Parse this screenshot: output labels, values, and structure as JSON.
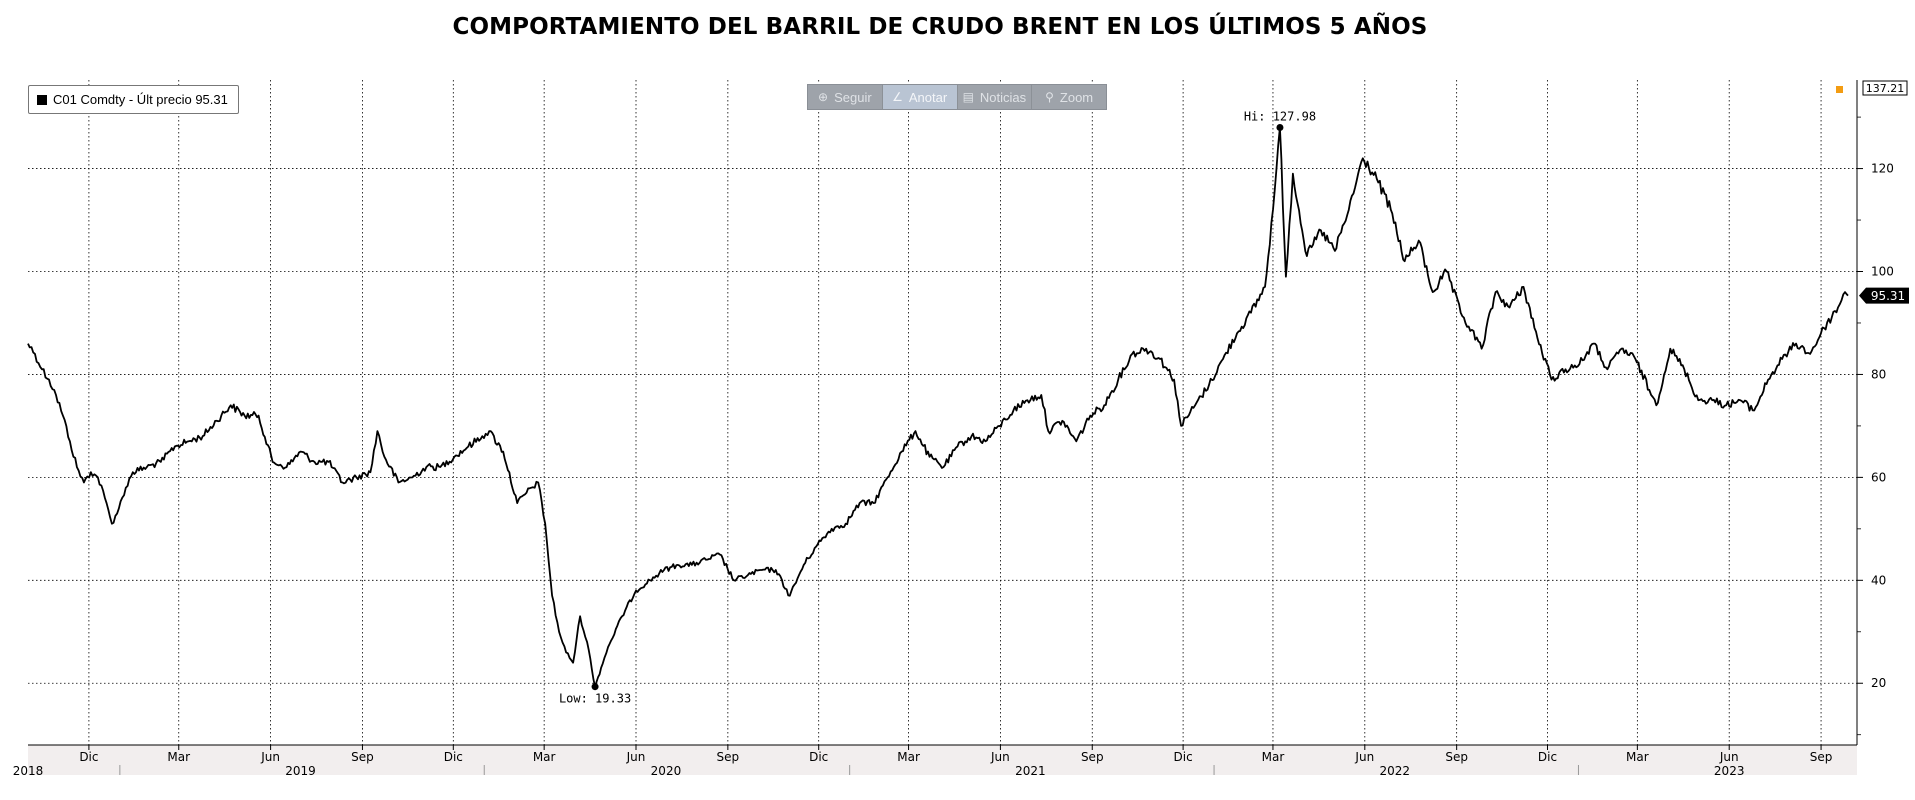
{
  "title": "COMPORTAMIENTO DEL BARRIL DE CRUDO BRENT EN LOS ÚLTIMOS 5 AÑOS",
  "legend": {
    "label": "C01 Comdty - Últ precio 95.31"
  },
  "toolbar": [
    {
      "label": "Seguir",
      "icon": "crosshair-icon",
      "glyph": "⊕",
      "active": false
    },
    {
      "label": "Anotar",
      "icon": "pencil-icon",
      "glyph": "∠",
      "active": true
    },
    {
      "label": "Noticias",
      "icon": "news-icon",
      "glyph": "▤",
      "active": false
    },
    {
      "label": "Zoom",
      "icon": "magnifier-icon",
      "glyph": "⚲",
      "active": false
    }
  ],
  "colors": {
    "line": "#000000",
    "marker": "#f39c12",
    "toolbar": "#9ea3aa",
    "axis_band": "#f2eeee"
  },
  "chart_data": {
    "type": "line",
    "ylim": [
      8,
      137.21
    ],
    "yticks": [
      20,
      40,
      60,
      80,
      100,
      120
    ],
    "axis_top_label": "137.21",
    "last_value": 95.31,
    "last_label": "95.31",
    "grid": true,
    "legend_position": "top-left",
    "x_month_ticks": [
      {
        "date": "2018-12",
        "label": "Dic"
      },
      {
        "date": "2019-03",
        "label": "Mar"
      },
      {
        "date": "2019-06",
        "label": "Jun"
      },
      {
        "date": "2019-09",
        "label": "Sep"
      },
      {
        "date": "2019-12",
        "label": "Dic"
      },
      {
        "date": "2020-03",
        "label": "Mar"
      },
      {
        "date": "2020-06",
        "label": "Jun"
      },
      {
        "date": "2020-09",
        "label": "Sep"
      },
      {
        "date": "2020-12",
        "label": "Dic"
      },
      {
        "date": "2021-03",
        "label": "Mar"
      },
      {
        "date": "2021-06",
        "label": "Jun"
      },
      {
        "date": "2021-09",
        "label": "Sep"
      },
      {
        "date": "2021-12",
        "label": "Dic"
      },
      {
        "date": "2022-03",
        "label": "Mar"
      },
      {
        "date": "2022-06",
        "label": "Jun"
      },
      {
        "date": "2022-09",
        "label": "Sep"
      },
      {
        "date": "2022-12",
        "label": "Dic"
      },
      {
        "date": "2023-03",
        "label": "Mar"
      },
      {
        "date": "2023-06",
        "label": "Jun"
      },
      {
        "date": "2023-09",
        "label": "Sep"
      }
    ],
    "x_year_labels": [
      {
        "date": "2018-10",
        "label": "2018"
      },
      {
        "date": "2019-07",
        "label": "2019"
      },
      {
        "date": "2020-07",
        "label": "2020"
      },
      {
        "date": "2021-07",
        "label": "2021"
      },
      {
        "date": "2022-07",
        "label": "2022"
      },
      {
        "date": "2023-06",
        "label": "2023"
      }
    ],
    "annotations": [
      {
        "date": "2020-04-21",
        "value": 19.33,
        "label": "Low: 19.33"
      },
      {
        "date": "2022-03-08",
        "value": 127.98,
        "label": "Hi: 127.98"
      }
    ],
    "series": [
      {
        "points": [
          [
            "2018-10-01",
            86
          ],
          [
            "2018-10-08",
            84
          ],
          [
            "2018-10-15",
            81
          ],
          [
            "2018-10-22",
            79
          ],
          [
            "2018-10-29",
            76
          ],
          [
            "2018-11-05",
            72
          ],
          [
            "2018-11-12",
            67
          ],
          [
            "2018-11-19",
            62
          ],
          [
            "2018-11-26",
            59
          ],
          [
            "2018-12-03",
            61
          ],
          [
            "2018-12-10",
            60
          ],
          [
            "2018-12-17",
            56
          ],
          [
            "2018-12-24",
            51
          ],
          [
            "2018-12-31",
            54
          ],
          [
            "2019-01-07",
            58
          ],
          [
            "2019-01-14",
            61
          ],
          [
            "2019-01-28",
            62
          ],
          [
            "2019-02-11",
            63
          ],
          [
            "2019-02-25",
            66
          ],
          [
            "2019-03-11",
            67
          ],
          [
            "2019-03-25",
            68
          ],
          [
            "2019-04-08",
            71
          ],
          [
            "2019-04-22",
            74
          ],
          [
            "2019-05-06",
            72
          ],
          [
            "2019-05-20",
            72
          ],
          [
            "2019-06-03",
            63
          ],
          [
            "2019-06-17",
            62
          ],
          [
            "2019-07-01",
            65
          ],
          [
            "2019-07-15",
            63
          ],
          [
            "2019-07-29",
            63
          ],
          [
            "2019-08-12",
            59
          ],
          [
            "2019-08-26",
            60
          ],
          [
            "2019-09-09",
            61
          ],
          [
            "2019-09-16",
            69
          ],
          [
            "2019-09-23",
            64
          ],
          [
            "2019-10-07",
            59
          ],
          [
            "2019-10-21",
            60
          ],
          [
            "2019-11-04",
            62
          ],
          [
            "2019-11-18",
            62
          ],
          [
            "2019-12-02",
            64
          ],
          [
            "2019-12-16",
            66
          ],
          [
            "2019-12-30",
            68
          ],
          [
            "2020-01-06",
            69
          ],
          [
            "2020-01-20",
            65
          ],
          [
            "2020-02-03",
            55
          ],
          [
            "2020-02-17",
            58
          ],
          [
            "2020-02-24",
            59
          ],
          [
            "2020-03-02",
            51
          ],
          [
            "2020-03-09",
            37
          ],
          [
            "2020-03-16",
            30
          ],
          [
            "2020-03-23",
            26
          ],
          [
            "2020-03-30",
            24
          ],
          [
            "2020-04-06",
            33
          ],
          [
            "2020-04-13",
            28
          ],
          [
            "2020-04-21",
            19.33
          ],
          [
            "2020-04-27",
            23
          ],
          [
            "2020-05-04",
            27
          ],
          [
            "2020-05-18",
            33
          ],
          [
            "2020-06-01",
            38
          ],
          [
            "2020-06-15",
            40
          ],
          [
            "2020-06-29",
            42
          ],
          [
            "2020-07-13",
            43
          ],
          [
            "2020-07-27",
            43
          ],
          [
            "2020-08-10",
            44
          ],
          [
            "2020-08-24",
            45
          ],
          [
            "2020-09-07",
            40
          ],
          [
            "2020-09-21",
            41
          ],
          [
            "2020-10-05",
            42
          ],
          [
            "2020-10-19",
            42
          ],
          [
            "2020-11-02",
            37
          ],
          [
            "2020-11-16",
            43
          ],
          [
            "2020-11-30",
            47
          ],
          [
            "2020-12-14",
            50
          ],
          [
            "2020-12-28",
            51
          ],
          [
            "2021-01-11",
            55
          ],
          [
            "2021-01-25",
            55
          ],
          [
            "2021-02-08",
            60
          ],
          [
            "2021-02-22",
            65
          ],
          [
            "2021-03-08",
            69
          ],
          [
            "2021-03-22",
            64
          ],
          [
            "2021-04-05",
            62
          ],
          [
            "2021-04-19",
            66
          ],
          [
            "2021-05-03",
            68
          ],
          [
            "2021-05-17",
            67
          ],
          [
            "2021-05-31",
            70
          ],
          [
            "2021-06-14",
            73
          ],
          [
            "2021-06-28",
            75
          ],
          [
            "2021-07-12",
            76
          ],
          [
            "2021-07-19",
            69
          ],
          [
            "2021-08-02",
            71
          ],
          [
            "2021-08-16",
            67
          ],
          [
            "2021-08-30",
            72
          ],
          [
            "2021-09-13",
            74
          ],
          [
            "2021-09-27",
            79
          ],
          [
            "2021-10-11",
            84
          ],
          [
            "2021-10-25",
            85
          ],
          [
            "2021-11-08",
            83
          ],
          [
            "2021-11-22",
            79
          ],
          [
            "2021-11-29",
            70
          ],
          [
            "2021-12-13",
            74
          ],
          [
            "2021-12-27",
            78
          ],
          [
            "2022-01-10",
            83
          ],
          [
            "2022-01-24",
            88
          ],
          [
            "2022-02-07",
            92
          ],
          [
            "2022-02-21",
            97
          ],
          [
            "2022-03-01",
            112
          ],
          [
            "2022-03-08",
            127.98
          ],
          [
            "2022-03-14",
            99
          ],
          [
            "2022-03-21",
            119
          ],
          [
            "2022-04-04",
            103
          ],
          [
            "2022-04-18",
            108
          ],
          [
            "2022-05-02",
            104
          ],
          [
            "2022-05-16",
            112
          ],
          [
            "2022-05-30",
            122
          ],
          [
            "2022-06-13",
            118
          ],
          [
            "2022-06-27",
            112
          ],
          [
            "2022-07-11",
            102
          ],
          [
            "2022-07-25",
            106
          ],
          [
            "2022-08-08",
            96
          ],
          [
            "2022-08-22",
            100
          ],
          [
            "2022-09-05",
            92
          ],
          [
            "2022-09-26",
            85
          ],
          [
            "2022-10-10",
            96
          ],
          [
            "2022-10-24",
            93
          ],
          [
            "2022-11-07",
            97
          ],
          [
            "2022-11-21",
            87
          ],
          [
            "2022-12-05",
            79
          ],
          [
            "2022-12-19",
            81
          ],
          [
            "2023-01-02",
            82
          ],
          [
            "2023-01-16",
            86
          ],
          [
            "2023-01-30",
            81
          ],
          [
            "2023-02-13",
            85
          ],
          [
            "2023-02-27",
            83
          ],
          [
            "2023-03-13",
            77
          ],
          [
            "2023-03-20",
            74
          ],
          [
            "2023-04-03",
            85
          ],
          [
            "2023-04-17",
            81
          ],
          [
            "2023-05-01",
            75
          ],
          [
            "2023-05-15",
            75
          ],
          [
            "2023-05-29",
            74
          ],
          [
            "2023-06-12",
            75
          ],
          [
            "2023-06-26",
            73
          ],
          [
            "2023-07-10",
            79
          ],
          [
            "2023-07-24",
            83
          ],
          [
            "2023-08-07",
            86
          ],
          [
            "2023-08-21",
            84
          ],
          [
            "2023-09-04",
            89
          ],
          [
            "2023-09-18",
            93
          ],
          [
            "2023-09-25",
            96
          ],
          [
            "2023-09-28",
            95.31
          ]
        ]
      }
    ]
  }
}
